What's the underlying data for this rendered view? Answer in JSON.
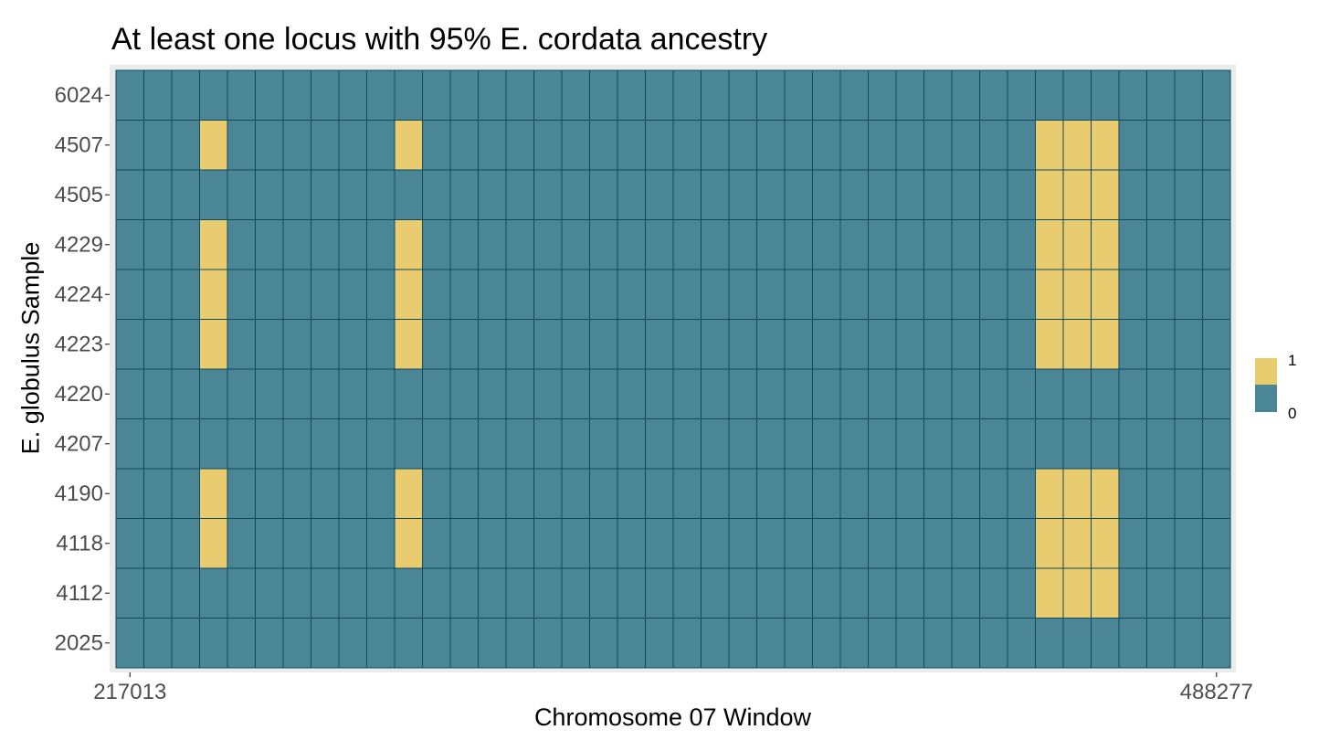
{
  "chart_data": {
    "type": "heatmap",
    "title": "At least one locus with 95% E. cordata ancestry",
    "xlabel": "Chromosome 07 Window",
    "ylabel": "E. globulus Sample",
    "x_tick_labels": [
      "217013",
      "488277"
    ],
    "y_categories": [
      "6024",
      "4507",
      "4505",
      "4229",
      "4224",
      "4223",
      "4220",
      "4207",
      "4190",
      "4118",
      "4112",
      "2025"
    ],
    "n_windows": 40,
    "legend": {
      "position": "right",
      "entries": [
        {
          "label": "1",
          "color": "#E9CB70"
        },
        {
          "label": "0",
          "color": "#4B8696"
        }
      ]
    },
    "colors": {
      "one": "#E9CB70",
      "zero": "#4B8696",
      "tile_border": "#0E4B5A",
      "panel_background": "#EBEBEB"
    },
    "rows": [
      {
        "sample": "6024",
        "windows_with_value_1": []
      },
      {
        "sample": "4507",
        "windows_with_value_1": [
          3,
          10,
          33,
          34,
          35
        ]
      },
      {
        "sample": "4505",
        "windows_with_value_1": [
          33,
          34,
          35
        ]
      },
      {
        "sample": "4229",
        "windows_with_value_1": [
          3,
          10,
          33,
          34,
          35
        ]
      },
      {
        "sample": "4224",
        "windows_with_value_1": [
          3,
          10,
          33,
          34,
          35
        ]
      },
      {
        "sample": "4223",
        "windows_with_value_1": [
          3,
          10,
          33,
          34,
          35
        ]
      },
      {
        "sample": "4220",
        "windows_with_value_1": []
      },
      {
        "sample": "4207",
        "windows_with_value_1": []
      },
      {
        "sample": "4190",
        "windows_with_value_1": [
          3,
          10,
          33,
          34,
          35
        ]
      },
      {
        "sample": "4118",
        "windows_with_value_1": [
          3,
          10,
          33,
          34,
          35
        ]
      },
      {
        "sample": "4112",
        "windows_with_value_1": [
          33,
          34,
          35
        ]
      },
      {
        "sample": "2025",
        "windows_with_value_1": []
      }
    ]
  }
}
